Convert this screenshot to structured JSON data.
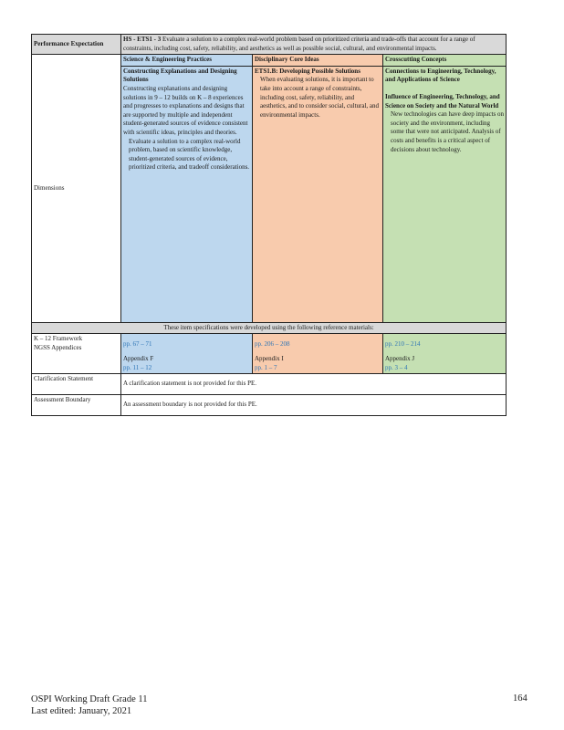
{
  "pe": {
    "label": "Performance Expectation",
    "code": "HS - ETS1 - 3",
    "text": "Evaluate a solution to a complex real-world problem based on prioritized criteria and trade-offs that account for a range of constraints, including cost, safety, reliability, and aesthetics as well as possible social, cultural, and environmental impacts."
  },
  "dimensions": {
    "label": "Dimensions",
    "sep": {
      "header": "Science & Engineering Practices",
      "title": "Constructing Explanations and Designing Solutions",
      "body": "Constructing explanations and designing solutions in 9 – 12 builds on K – 8 experiences and progresses to explanations and designs that are supported by multiple and independent student-generated sources of evidence consistent with scientific ideas, principles and theories.",
      "bullet": " Evaluate a solution to a complex real-world problem, based on scientific knowledge, student-generated sources of evidence, prioritized criteria, and tradeoff considerations."
    },
    "dci": {
      "header": "Disciplinary Core Ideas",
      "title": "ETS1.B: Developing Possible Solutions",
      "bullet": " When evaluating solutions, it is important to take into account a range of constraints, including cost, safety, reliability, and aesthetics, and to consider social, cultural, and environmental impacts."
    },
    "ccc": {
      "header": "Crosscutting Concepts",
      "title": "Connections to Engineering, Technology, and Applications of Science",
      "subtitle": "Influence of Engineering, Technology, and Science on Society and the Natural World",
      "bullet": " New technologies can have deep impacts on society and the environment, including some that were not anticipated. Analysis of costs and benefits is a critical aspect of decisions about technology."
    }
  },
  "references": {
    "intro": "These item specifications were developed using the following reference materials:",
    "framework_label": "K – 12 Framework",
    "appendices_label": "NGSS Appendices",
    "sep_pages": "pp. 67 – 71",
    "sep_appendix": "Appendix F",
    "sep_appendix_pages": "pp. 11 – 12",
    "dci_pages": "pp. 206 – 208",
    "dci_appendix": "Appendix I",
    "dci_appendix_pages": "pp. 1 – 7",
    "ccc_pages": "pp. 210 – 214",
    "ccc_appendix": "Appendix J",
    "ccc_appendix_pages": "pp. 3 – 4"
  },
  "clarification": {
    "label": "Clarification Statement",
    "text": "A clarification statement is not provided for this PE."
  },
  "assessment": {
    "label": "Assessment Boundary",
    "text": "An assessment boundary is not provided for this PE."
  },
  "footer": {
    "line1": "OSPI Working Draft Grade 11",
    "line2": "Last edited: January, 2021",
    "page": "164"
  }
}
